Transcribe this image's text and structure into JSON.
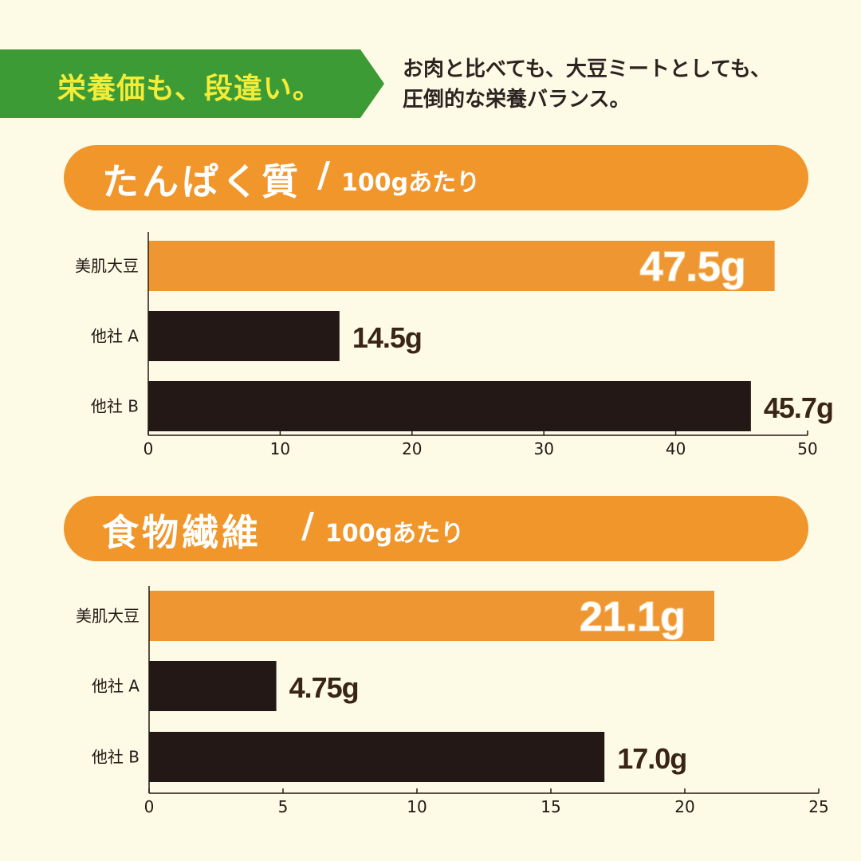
{
  "header": {
    "banner_text": "栄養価も、段違い。",
    "intro_line1": "お肉と比べても、大豆ミートとしても、",
    "intro_line2": "圧倒的な栄養バランス。"
  },
  "sections": [
    {
      "title": "たんぱく質",
      "separator": "/",
      "unit": "100gあたり"
    },
    {
      "title": "食物繊維",
      "separator": "/",
      "unit": "100gあたり"
    }
  ],
  "colors": {
    "background": "#fdfbe6",
    "banner": "#3d9b35",
    "banner_text": "#f3ec39",
    "accent_orange": "#f0962b",
    "bar_orange": "#ee9632",
    "bar_dark": "#231815",
    "value_brown": "#3a2414"
  },
  "chart_data": [
    {
      "type": "bar",
      "orientation": "horizontal",
      "categories": [
        "美肌大豆",
        "他社 A",
        "他社 B"
      ],
      "values": [
        47.5,
        14.5,
        45.7
      ],
      "value_labels": [
        "47.5g",
        "14.5g",
        "45.7g"
      ],
      "xlim": [
        0,
        50
      ],
      "xticks": [
        0,
        10,
        20,
        30,
        40,
        50
      ],
      "xtick_labels": [
        "0",
        "10",
        "20",
        "30",
        "40",
        "50"
      ],
      "grid": false
    },
    {
      "type": "bar",
      "orientation": "horizontal",
      "categories": [
        "美肌大豆",
        "他社 A",
        "他社 B"
      ],
      "values": [
        21.1,
        4.75,
        17.0
      ],
      "value_labels": [
        "21.1g",
        "4.75g",
        "17.0g"
      ],
      "xlim": [
        0,
        25
      ],
      "xticks": [
        0,
        5,
        10,
        15,
        20,
        25
      ],
      "xtick_labels": [
        "0",
        "5",
        "10",
        "15",
        "20",
        "25"
      ],
      "grid": false
    }
  ]
}
